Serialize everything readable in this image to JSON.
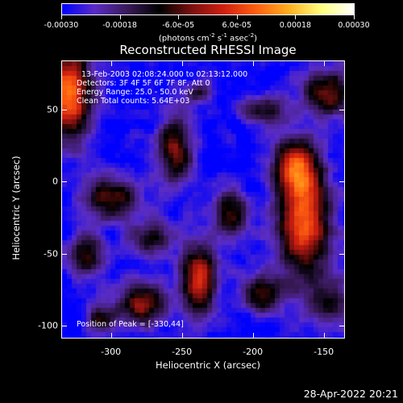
{
  "colorbar": {
    "labels": [
      "-0.00030",
      "-0.00018",
      "-6.0e-05",
      "6.0e-05",
      "0.00018",
      "0.00030"
    ],
    "units_prefix": "(photons cm",
    "units_exp1": "-2",
    "units_mid1": " s",
    "units_exp2": "-1",
    "units_mid2": " asec",
    "units_exp3": "-2",
    "units_suffix": ")"
  },
  "plot": {
    "title": "Reconstructed RHESSI Image",
    "annotations": [
      "13-Feb-2003 02:08:24.000 to 02:13:12.000",
      "Detectors: 3F 4F 5F 6F 7F 8F, Att 0",
      "Energy Range: 25.0 - 50.0 keV",
      "Clean     Total counts: 5.64E+03"
    ],
    "peak_label": "Position of Peak = [-330,44]",
    "xlabel": "Heliocentric X (arcsec)",
    "ylabel": "Heliocentric Y (arcsec)",
    "xticks": [
      "-300",
      "-250",
      "-200",
      "-150"
    ],
    "xtick_values": [
      -300,
      -250,
      -200,
      -150
    ],
    "yticks": [
      "50",
      "0",
      "-50",
      "-100"
    ],
    "ytick_values": [
      50,
      0,
      -50,
      -100
    ],
    "xlim": [
      -335,
      -135
    ],
    "ylim": [
      -109,
      84
    ]
  },
  "timestamp": "28-Apr-2022 20:21",
  "colors": {
    "colormap": [
      "#0000ff",
      "#5a2cc4",
      "#3a1a5a",
      "#000000",
      "#7a1010",
      "#d02010",
      "#ff6010",
      "#ffb020",
      "#ffff80",
      "#ffffff"
    ]
  }
}
